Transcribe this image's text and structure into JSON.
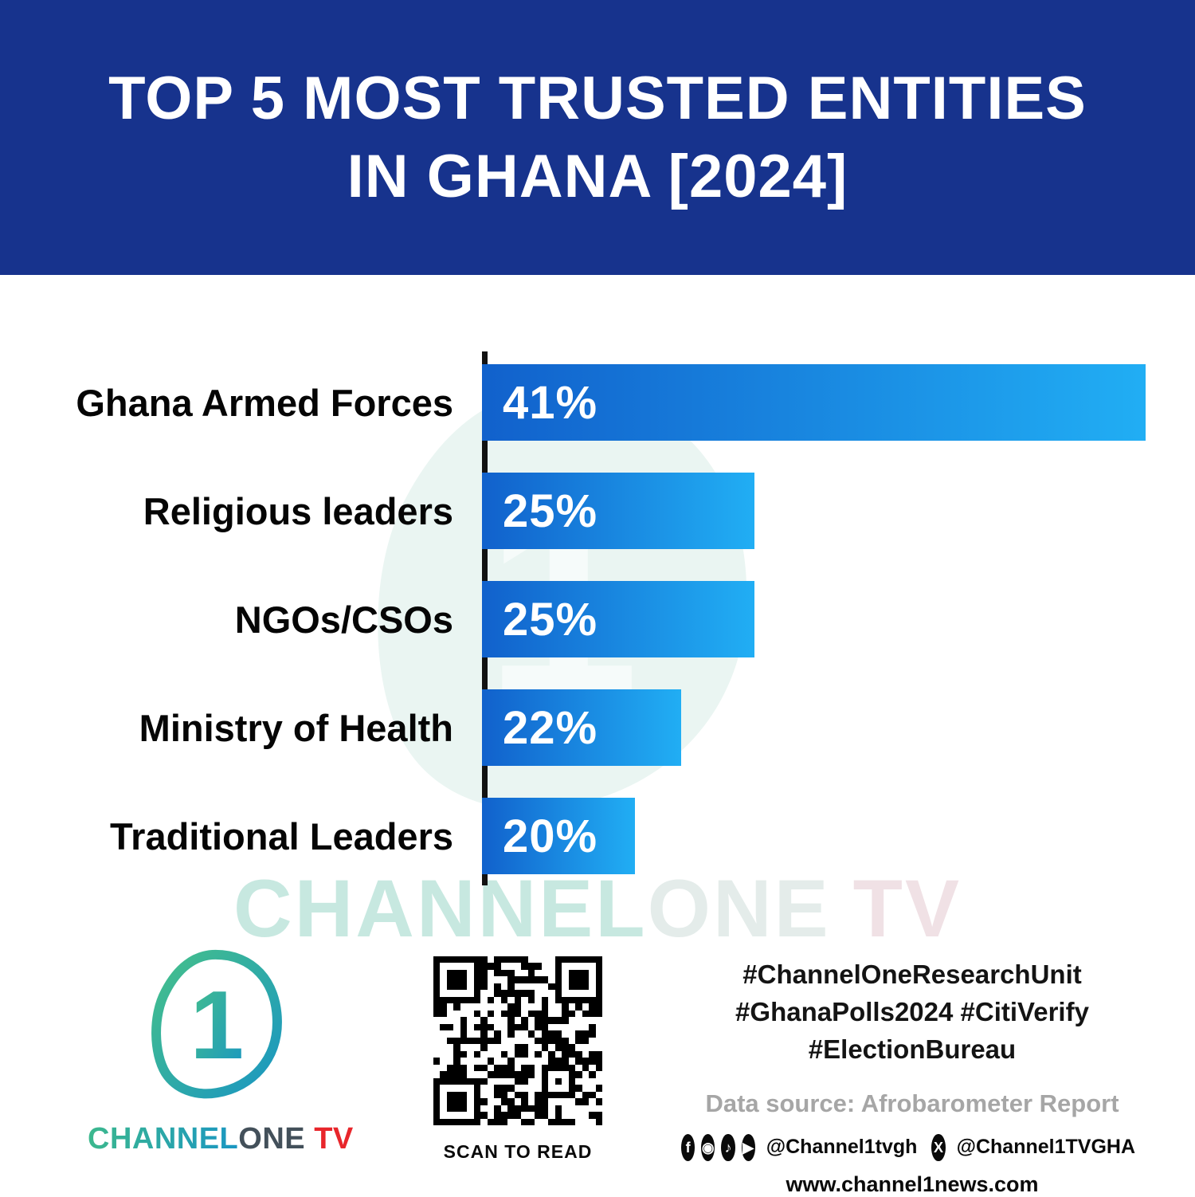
{
  "title": {
    "line1": "TOP 5 MOST TRUSTED ENTITIES",
    "line2": "IN GHANA [2024]"
  },
  "chart_data": {
    "type": "bar",
    "orientation": "horizontal",
    "title": "Top 5 Most Trusted Entities in Ghana [2024]",
    "categories": [
      "Ghana Armed Forces",
      "Religious leaders",
      "NGOs/CSOs",
      "Ministry of Health",
      "Traditional Leaders"
    ],
    "values": [
      41,
      25,
      25,
      22,
      20
    ],
    "value_labels": [
      "41%",
      "25%",
      "25%",
      "22%",
      "20%"
    ],
    "unit": "%",
    "bar_width_pct": [
      100,
      41,
      41,
      30,
      23
    ],
    "bar_gradient": [
      "#1161cc",
      "#21aef4"
    ],
    "axis_color": "#121212",
    "grid": false,
    "legend": false,
    "xlabel": "",
    "ylabel": ""
  },
  "watermark": {
    "part_channel": "CHANNEL",
    "part_one": "ONE",
    "part_tv": "TV",
    "numeral": "1"
  },
  "footer": {
    "logo": {
      "numeral": "1",
      "brand_channel": "CHANNEL",
      "brand_one": "ONE",
      "brand_tv": " TV"
    },
    "qr_caption": "SCAN TO READ",
    "hashtags": [
      "#ChannelOneResearchUnit",
      "#GhanaPolls2024 #CitiVerify",
      "#ElectionBureau"
    ],
    "data_source": "Data source: Afrobarometer Report",
    "social_groups": [
      {
        "handle": "@Channel1tvgh",
        "icons": [
          {
            "name": "facebook-icon",
            "glyph": "f"
          },
          {
            "name": "instagram-icon",
            "glyph": "◉"
          },
          {
            "name": "tiktok-icon",
            "glyph": "♪"
          },
          {
            "name": "youtube-icon",
            "glyph": "▶"
          }
        ]
      },
      {
        "handle": "@Channel1TVGHA",
        "icons": [
          {
            "name": "x-icon",
            "glyph": "X"
          }
        ]
      }
    ],
    "website": "www.channel1news.com"
  },
  "colors": {
    "banner_bg": "#17338d",
    "bar_start": "#1161cc",
    "bar_end": "#21aef4",
    "tv_red": "#e8262b",
    "teal_start": "#45c08a",
    "teal_end": "#1a96c2"
  }
}
